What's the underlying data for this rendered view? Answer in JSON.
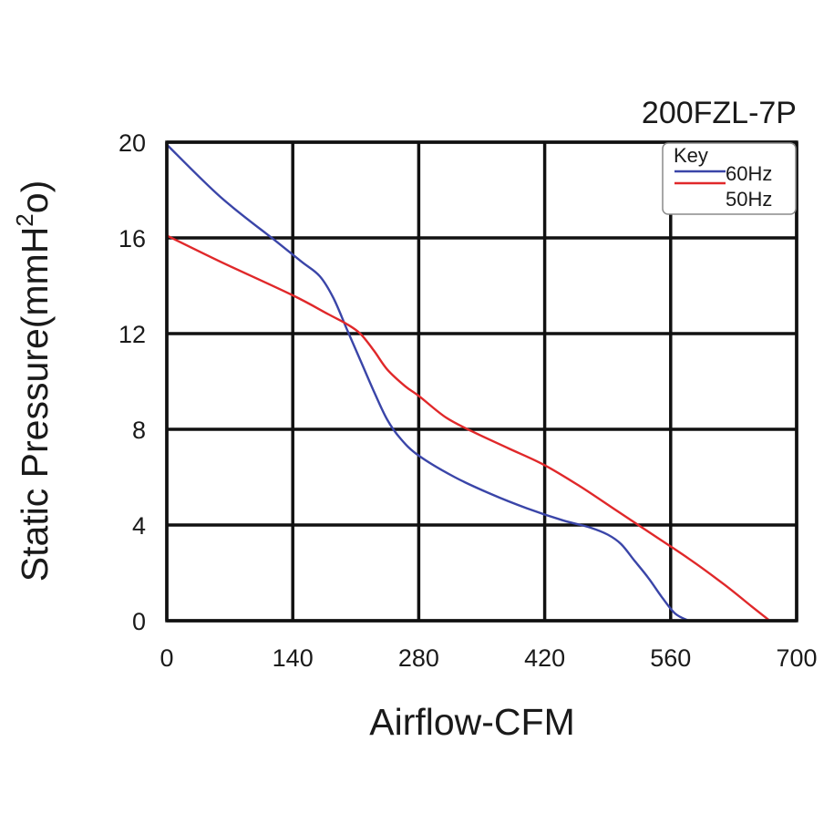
{
  "chart_data": {
    "type": "line",
    "title": "200FZL-7P",
    "xlabel": "Airflow-CFM",
    "ylabel": "Static Pressure(mmH",
    "ylabel_sup": "2",
    "ylabel_end": "o)",
    "xlim": [
      0,
      700
    ],
    "ylim": [
      0,
      20
    ],
    "xticks": [
      0,
      140,
      280,
      420,
      560,
      700
    ],
    "yticks": [
      0,
      4,
      8,
      12,
      16,
      20
    ],
    "xtick_labels": [
      "0",
      "140",
      "280",
      "420",
      "560",
      "700"
    ],
    "ytick_labels": [
      "0",
      "4",
      "8",
      "12",
      "16",
      "20"
    ],
    "grid": true,
    "legend": {
      "title": "Key",
      "position": "top-right"
    },
    "series": [
      {
        "name": "60Hz",
        "color": "#3a45a8",
        "points": [
          [
            0,
            19.9
          ],
          [
            60,
            17.7
          ],
          [
            120,
            15.9
          ],
          [
            150,
            15.0
          ],
          [
            170,
            14.4
          ],
          [
            185,
            13.5
          ],
          [
            200,
            12.2
          ],
          [
            215,
            10.9
          ],
          [
            230,
            9.6
          ],
          [
            245,
            8.4
          ],
          [
            260,
            7.6
          ],
          [
            280,
            6.9
          ],
          [
            320,
            6.0
          ],
          [
            360,
            5.3
          ],
          [
            400,
            4.7
          ],
          [
            440,
            4.2
          ],
          [
            470,
            3.9
          ],
          [
            490,
            3.6
          ],
          [
            505,
            3.2
          ],
          [
            520,
            2.5
          ],
          [
            535,
            1.8
          ],
          [
            550,
            1.0
          ],
          [
            565,
            0.3
          ],
          [
            580,
            0
          ]
        ]
      },
      {
        "name": "50Hz",
        "color": "#e0282a",
        "points": [
          [
            0,
            16.1
          ],
          [
            60,
            15.0
          ],
          [
            140,
            13.6
          ],
          [
            180,
            12.8
          ],
          [
            200,
            12.4
          ],
          [
            215,
            12.0
          ],
          [
            230,
            11.3
          ],
          [
            245,
            10.5
          ],
          [
            265,
            9.8
          ],
          [
            280,
            9.4
          ],
          [
            310,
            8.5
          ],
          [
            340,
            7.9
          ],
          [
            380,
            7.2
          ],
          [
            420,
            6.5
          ],
          [
            460,
            5.6
          ],
          [
            500,
            4.6
          ],
          [
            540,
            3.6
          ],
          [
            580,
            2.6
          ],
          [
            620,
            1.5
          ],
          [
            650,
            0.6
          ],
          [
            670,
            0
          ]
        ]
      }
    ]
  }
}
